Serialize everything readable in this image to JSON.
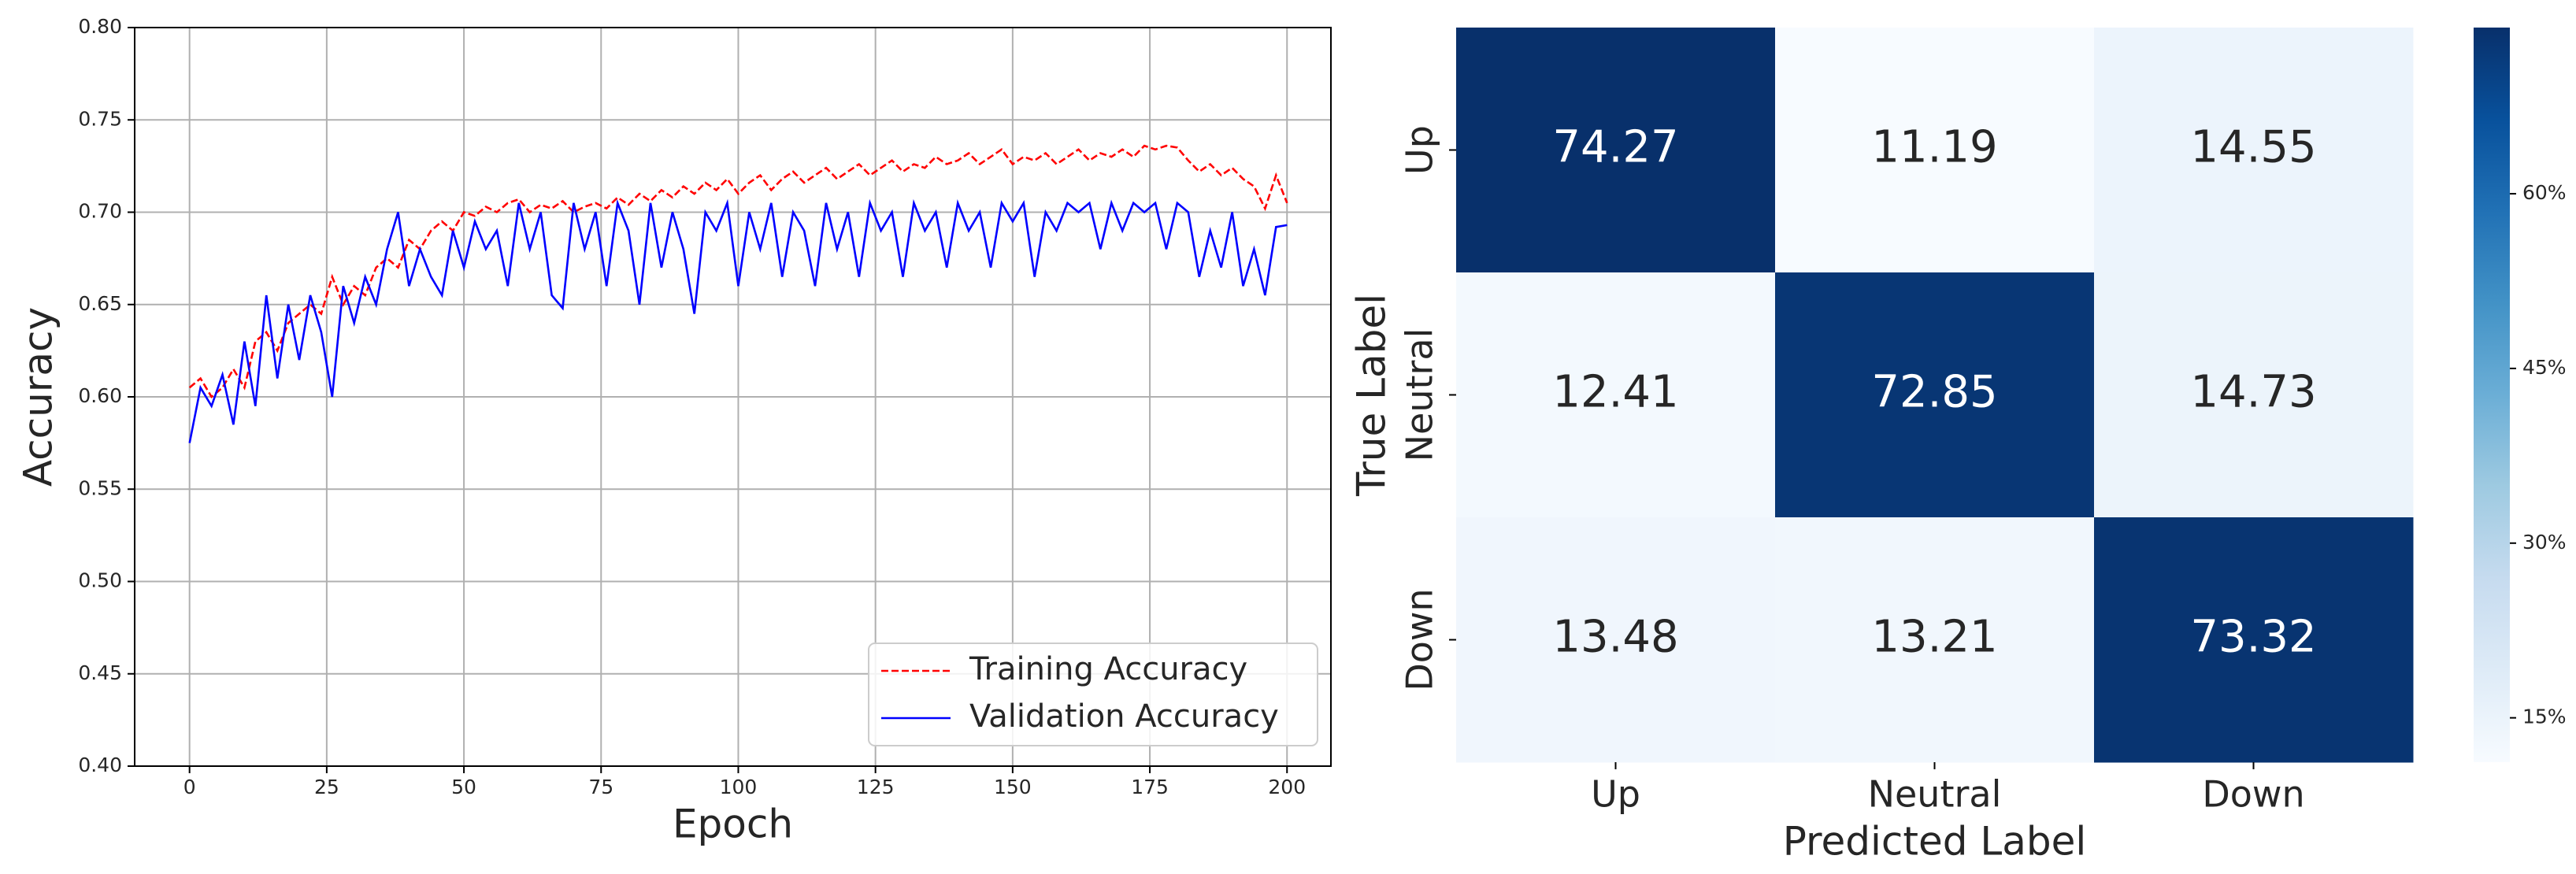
{
  "chart_data": [
    {
      "type": "line",
      "x_label": "Epoch",
      "y_label": "Accuracy",
      "x": [
        0,
        2,
        4,
        6,
        8,
        10,
        12,
        14,
        16,
        18,
        20,
        22,
        24,
        26,
        28,
        30,
        32,
        34,
        36,
        38,
        40,
        42,
        44,
        46,
        48,
        50,
        52,
        54,
        56,
        58,
        60,
        62,
        64,
        66,
        68,
        70,
        72,
        74,
        76,
        78,
        80,
        82,
        84,
        86,
        88,
        90,
        92,
        94,
        96,
        98,
        100,
        102,
        104,
        106,
        108,
        110,
        112,
        114,
        116,
        118,
        120,
        122,
        124,
        126,
        128,
        130,
        132,
        134,
        136,
        138,
        140,
        142,
        144,
        146,
        148,
        150,
        152,
        154,
        156,
        158,
        160,
        162,
        164,
        166,
        168,
        170,
        172,
        174,
        176,
        178,
        180,
        182,
        184,
        186,
        188,
        190,
        192,
        194,
        196,
        198,
        200
      ],
      "series": [
        {
          "name": "Training Accuracy",
          "color": "#ff0000",
          "dash": true,
          "values": [
            0.605,
            0.61,
            0.6,
            0.605,
            0.615,
            0.605,
            0.63,
            0.635,
            0.625,
            0.64,
            0.645,
            0.65,
            0.645,
            0.665,
            0.65,
            0.66,
            0.655,
            0.67,
            0.675,
            0.67,
            0.685,
            0.68,
            0.69,
            0.695,
            0.69,
            0.7,
            0.698,
            0.703,
            0.7,
            0.705,
            0.707,
            0.7,
            0.704,
            0.702,
            0.706,
            0.7,
            0.703,
            0.705,
            0.702,
            0.708,
            0.704,
            0.71,
            0.706,
            0.712,
            0.708,
            0.714,
            0.71,
            0.716,
            0.712,
            0.718,
            0.71,
            0.716,
            0.72,
            0.712,
            0.718,
            0.722,
            0.716,
            0.72,
            0.724,
            0.718,
            0.722,
            0.726,
            0.72,
            0.724,
            0.728,
            0.722,
            0.726,
            0.724,
            0.73,
            0.726,
            0.728,
            0.732,
            0.726,
            0.73,
            0.734,
            0.726,
            0.73,
            0.728,
            0.732,
            0.726,
            0.73,
            0.734,
            0.728,
            0.732,
            0.73,
            0.734,
            0.73,
            0.736,
            0.734,
            0.736,
            0.735,
            0.728,
            0.722,
            0.726,
            0.72,
            0.724,
            0.718,
            0.714,
            0.702,
            0.72,
            0.705
          ]
        },
        {
          "name": "Validation Accuracy",
          "color": "#0000ff",
          "dash": false,
          "values": [
            0.575,
            0.605,
            0.595,
            0.612,
            0.585,
            0.63,
            0.595,
            0.655,
            0.61,
            0.65,
            0.62,
            0.655,
            0.635,
            0.6,
            0.66,
            0.64,
            0.665,
            0.65,
            0.68,
            0.7,
            0.66,
            0.68,
            0.665,
            0.655,
            0.69,
            0.67,
            0.695,
            0.68,
            0.69,
            0.66,
            0.705,
            0.68,
            0.7,
            0.655,
            0.648,
            0.705,
            0.68,
            0.7,
            0.66,
            0.705,
            0.69,
            0.65,
            0.705,
            0.67,
            0.7,
            0.68,
            0.645,
            0.7,
            0.69,
            0.705,
            0.66,
            0.7,
            0.68,
            0.705,
            0.665,
            0.7,
            0.69,
            0.66,
            0.705,
            0.68,
            0.7,
            0.665,
            0.705,
            0.69,
            0.7,
            0.665,
            0.705,
            0.69,
            0.7,
            0.67,
            0.705,
            0.69,
            0.7,
            0.67,
            0.705,
            0.695,
            0.705,
            0.665,
            0.7,
            0.69,
            0.705,
            0.7,
            0.705,
            0.68,
            0.705,
            0.69,
            0.705,
            0.7,
            0.705,
            0.68,
            0.705,
            0.7,
            0.665,
            0.69,
            0.67,
            0.7,
            0.66,
            0.68,
            0.655,
            0.692,
            0.693
          ]
        }
      ],
      "xlim": [
        -10,
        208
      ],
      "ylim": [
        0.4,
        0.8
      ],
      "xticks": [
        0,
        25,
        50,
        75,
        100,
        125,
        150,
        175,
        200
      ],
      "yticks": [
        {
          "value": 0.4,
          "label": "0.40"
        },
        0.45,
        {
          "value": 0.5,
          "label": "0.50"
        },
        0.55,
        {
          "value": 0.6,
          "label": "0.60"
        },
        0.65,
        {
          "value": 0.7,
          "label": "0.70"
        },
        0.75,
        {
          "value": 0.8,
          "label": "0.80"
        }
      ],
      "grid": true,
      "legend": "lower right"
    },
    {
      "type": "heatmap",
      "x_label": "Predicted Label",
      "y_label": "True Label",
      "x_categories": [
        "Up",
        "Neutral",
        "Down"
      ],
      "y_categories": [
        "Up",
        "Neutral",
        "Down"
      ],
      "values": [
        [
          74.27,
          11.19,
          14.55
        ],
        [
          12.41,
          72.85,
          14.73
        ],
        [
          13.48,
          13.21,
          73.32
        ]
      ],
      "colormap": "Blues",
      "clim": [
        11.19,
        74.27
      ],
      "colorbar_ticks": [
        {
          "value": 15,
          "label": "15%"
        },
        {
          "value": 30,
          "label": "30%"
        },
        {
          "value": 45,
          "label": "45%"
        },
        {
          "value": 60,
          "label": "60%"
        }
      ]
    }
  ]
}
